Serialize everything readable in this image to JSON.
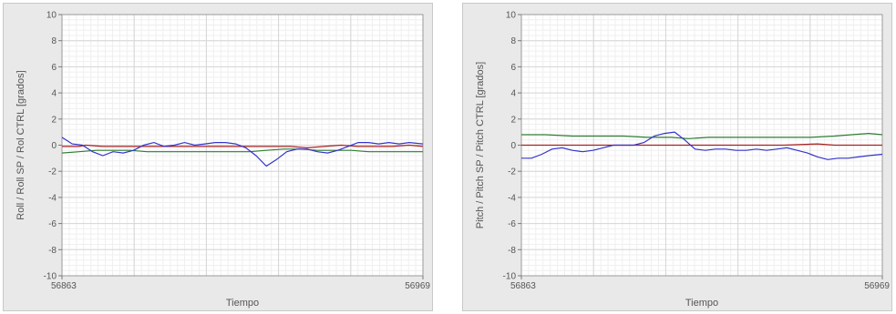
{
  "chart_data": [
    {
      "type": "line",
      "ylabel": "Roll / Roll SP / Rol CTRL [grados]",
      "xlabel": "Tiempo",
      "xlim": [
        56863,
        56969
      ],
      "ylim": [
        -10,
        10
      ],
      "y_ticks": [
        "10",
        "8",
        "6",
        "4",
        "2",
        "0",
        "-2",
        "-4",
        "-6",
        "-8",
        "-10"
      ],
      "x_ticks": [
        "56863",
        "56969"
      ],
      "grid": true,
      "series": [
        {
          "color": "#3333cc",
          "x": [
            56863,
            56866,
            56869,
            56872,
            56875,
            56878,
            56881,
            56884,
            56887,
            56890,
            56893,
            56896,
            56899,
            56902,
            56905,
            56908,
            56911,
            56914,
            56917,
            56920,
            56923,
            56926,
            56929,
            56932,
            56935,
            56938,
            56941,
            56944,
            56947,
            56950,
            56953,
            56956,
            56959,
            56962,
            56965,
            56969
          ],
          "values": [
            0.6,
            0.1,
            0.0,
            -0.5,
            -0.8,
            -0.5,
            -0.6,
            -0.4,
            0.0,
            0.2,
            -0.1,
            0.0,
            0.2,
            0.0,
            0.1,
            0.2,
            0.2,
            0.1,
            -0.2,
            -0.8,
            -1.6,
            -1.1,
            -0.5,
            -0.3,
            -0.3,
            -0.5,
            -0.6,
            -0.4,
            -0.1,
            0.2,
            0.2,
            0.1,
            0.2,
            0.1,
            0.2,
            0.1
          ]
        },
        {
          "color": "#aa2222",
          "x": [
            56863,
            56868,
            56870,
            56875,
            56880,
            56885,
            56890,
            56895,
            56900,
            56905,
            56910,
            56915,
            56920,
            56925,
            56930,
            56935,
            56940,
            56945,
            56950,
            56955,
            56960,
            56965,
            56969
          ],
          "values": [
            -0.1,
            -0.1,
            0.0,
            -0.1,
            -0.1,
            -0.1,
            -0.1,
            -0.1,
            -0.1,
            -0.1,
            -0.1,
            -0.1,
            -0.1,
            -0.1,
            -0.1,
            -0.2,
            -0.1,
            0.0,
            -0.1,
            -0.1,
            -0.1,
            0.0,
            -0.1
          ]
        },
        {
          "color": "#2e7d32",
          "x": [
            56863,
            56868,
            56873,
            56878,
            56883,
            56888,
            56893,
            56898,
            56903,
            56908,
            56913,
            56918,
            56923,
            56928,
            56933,
            56938,
            56943,
            56948,
            56953,
            56958,
            56963,
            56969
          ],
          "values": [
            -0.6,
            -0.5,
            -0.4,
            -0.4,
            -0.4,
            -0.5,
            -0.5,
            -0.5,
            -0.5,
            -0.5,
            -0.5,
            -0.5,
            -0.4,
            -0.3,
            -0.3,
            -0.4,
            -0.4,
            -0.4,
            -0.5,
            -0.5,
            -0.5,
            -0.5
          ]
        }
      ]
    },
    {
      "type": "line",
      "ylabel": "Pitch / Pitch SP / Pitch CTRL [grados]",
      "xlabel": "Tiempo",
      "xlim": [
        56863,
        56969
      ],
      "ylim": [
        -10,
        10
      ],
      "y_ticks": [
        "10",
        "8",
        "6",
        "4",
        "2",
        "0",
        "-2",
        "-4",
        "-6",
        "-8",
        "-10"
      ],
      "x_ticks": [
        "56863",
        "56969"
      ],
      "grid": true,
      "series": [
        {
          "color": "#3333cc",
          "x": [
            56863,
            56866,
            56869,
            56872,
            56875,
            56878,
            56881,
            56884,
            56887,
            56890,
            56893,
            56896,
            56899,
            56902,
            56905,
            56908,
            56911,
            56914,
            56917,
            56920,
            56923,
            56926,
            56929,
            56932,
            56935,
            56938,
            56941,
            56944,
            56947,
            56950,
            56953,
            56956,
            56959,
            56962,
            56965,
            56969
          ],
          "values": [
            -1.0,
            -1.0,
            -0.7,
            -0.3,
            -0.2,
            -0.4,
            -0.5,
            -0.4,
            -0.2,
            0.0,
            0.0,
            0.0,
            0.2,
            0.7,
            0.9,
            1.0,
            0.4,
            -0.3,
            -0.4,
            -0.3,
            -0.3,
            -0.4,
            -0.4,
            -0.3,
            -0.4,
            -0.3,
            -0.2,
            -0.4,
            -0.6,
            -0.9,
            -1.1,
            -1.0,
            -1.0,
            -0.9,
            -0.8,
            -0.7
          ]
        },
        {
          "color": "#aa2222",
          "x": [
            56863,
            56880,
            56900,
            56920,
            56940,
            56950,
            56955,
            56960,
            56969
          ],
          "values": [
            0.0,
            0.0,
            0.0,
            0.0,
            0.0,
            0.1,
            0.0,
            0.0,
            0.0
          ]
        },
        {
          "color": "#2e7d32",
          "x": [
            56863,
            56870,
            56878,
            56885,
            56893,
            56900,
            56907,
            56912,
            56918,
            56925,
            56932,
            56940,
            56948,
            56955,
            56960,
            56965,
            56969
          ],
          "values": [
            0.8,
            0.8,
            0.7,
            0.7,
            0.7,
            0.6,
            0.6,
            0.5,
            0.6,
            0.6,
            0.6,
            0.6,
            0.6,
            0.7,
            0.8,
            0.9,
            0.8
          ]
        }
      ]
    }
  ]
}
